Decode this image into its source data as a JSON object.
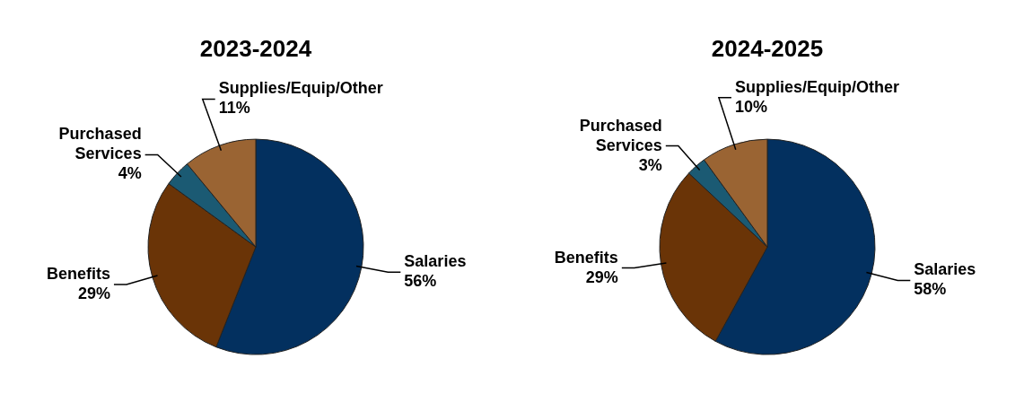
{
  "chart_data": [
    {
      "type": "pie",
      "title": "2023-2024",
      "categories": [
        "Salaries",
        "Benefits",
        "Purchased Services",
        "Supplies/Equip/Other"
      ],
      "values": [
        56,
        29,
        4,
        11
      ],
      "colors": [
        "#03305f",
        "#6a3407",
        "#1b5a73",
        "#9a6433"
      ],
      "value_labels": [
        "56%",
        "29%",
        "4%",
        "11%"
      ],
      "legend": false
    },
    {
      "type": "pie",
      "title": "2024-2025",
      "categories": [
        "Salaries",
        "Benefits",
        "Purchased Services",
        "Supplies/Equip/Other"
      ],
      "values": [
        58,
        29,
        3,
        10
      ],
      "colors": [
        "#03305f",
        "#6a3407",
        "#1b5a73",
        "#9a6433"
      ],
      "value_labels": [
        "58%",
        "29%",
        "3%",
        "10%"
      ],
      "legend": false
    }
  ]
}
